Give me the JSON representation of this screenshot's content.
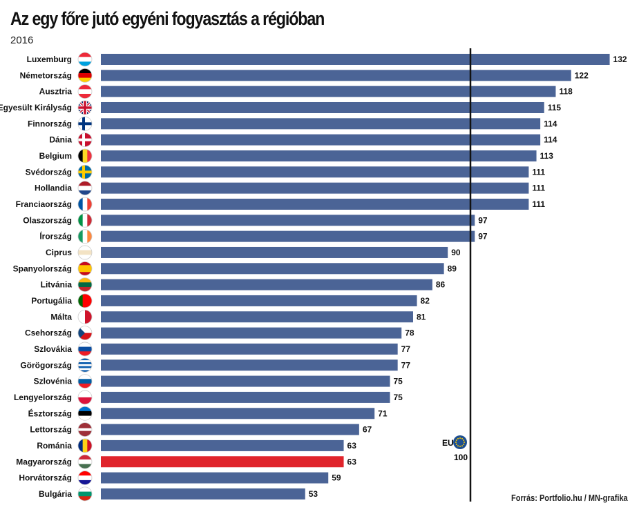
{
  "title": "Az egy főre jutó egyéni fogyasztás a régióban",
  "subtitle": "2016",
  "source": "Forrás: Portfolio.hu / MN-grafika",
  "eu": {
    "label": "EU",
    "value": 100,
    "value_label": "100"
  },
  "colors": {
    "bar": "#4b6496",
    "highlight": "#e0242b",
    "eu_line": "#111111"
  },
  "chart_data": {
    "type": "bar",
    "orientation": "horizontal",
    "title": "Az egy főre jutó egyéni fogyasztás a régióban",
    "subtitle": "2016",
    "xlabel": "",
    "ylabel": "",
    "reference_line": {
      "label": "EU",
      "value": 100
    },
    "highlight": "Magyarország",
    "categories": [
      "Luxemburg",
      "Németország",
      "Ausztria",
      "Egyesült Királyság",
      "Finnország",
      "Dánia",
      "Belgium",
      "Svédország",
      "Hollandia",
      "Franciaország",
      "Olaszország",
      "Írország",
      "Ciprus",
      "Spanyolország",
      "Litvánia",
      "Portugália",
      "Málta",
      "Csehország",
      "Szlovákia",
      "Görögország",
      "Szlovénia",
      "Lengyelország",
      "Észtország",
      "Lettország",
      "Románia",
      "Magyarország",
      "Horvátország",
      "Bulgária"
    ],
    "values": [
      132,
      122,
      118,
      115,
      114,
      114,
      113,
      111,
      111,
      111,
      97,
      97,
      90,
      89,
      86,
      82,
      81,
      78,
      77,
      77,
      75,
      75,
      71,
      67,
      63,
      63,
      59,
      53
    ],
    "flags": [
      {
        "t": "h",
        "c": [
          "#ed2939",
          "#ffffff",
          "#00a1de"
        ]
      },
      {
        "t": "h",
        "c": [
          "#000000",
          "#dd0000",
          "#ffce00"
        ]
      },
      {
        "t": "h",
        "c": [
          "#ed2939",
          "#ffffff",
          "#ed2939"
        ]
      },
      {
        "t": "uk",
        "c": [
          "#012169",
          "#ffffff",
          "#c8102e"
        ]
      },
      {
        "t": "nordic",
        "c": [
          "#ffffff",
          "#003580"
        ]
      },
      {
        "t": "nordic",
        "c": [
          "#c8102e",
          "#ffffff"
        ]
      },
      {
        "t": "v",
        "c": [
          "#000000",
          "#fdda24",
          "#ef3340"
        ]
      },
      {
        "t": "nordic",
        "c": [
          "#006aa7",
          "#fecc00"
        ]
      },
      {
        "t": "h",
        "c": [
          "#ae1c28",
          "#ffffff",
          "#21468b"
        ]
      },
      {
        "t": "v",
        "c": [
          "#0055a4",
          "#ffffff",
          "#ef4135"
        ]
      },
      {
        "t": "v",
        "c": [
          "#009246",
          "#ffffff",
          "#ce2b37"
        ]
      },
      {
        "t": "v",
        "c": [
          "#169b62",
          "#ffffff",
          "#ff883e"
        ]
      },
      {
        "t": "h",
        "c": [
          "#ffffff",
          "#f3e3c4",
          "#ffffff"
        ]
      },
      {
        "t": "h",
        "c": [
          "#c60b1e",
          "#ffc400",
          "#ffc400",
          "#c60b1e"
        ]
      },
      {
        "t": "h",
        "c": [
          "#fdb913",
          "#006a44",
          "#c1272d"
        ]
      },
      {
        "t": "v",
        "c": [
          "#006600",
          "#ff0000",
          "#ff0000"
        ]
      },
      {
        "t": "v",
        "c": [
          "#ffffff",
          "#cf142b"
        ]
      },
      {
        "t": "cz",
        "c": [
          "#ffffff",
          "#d7141a",
          "#11457e"
        ]
      },
      {
        "t": "h",
        "c": [
          "#ffffff",
          "#0b4ea2",
          "#ee1c25"
        ]
      },
      {
        "t": "h",
        "c": [
          "#0d5eaf",
          "#ffffff",
          "#0d5eaf",
          "#ffffff",
          "#0d5eaf",
          "#ffffff",
          "#0d5eaf"
        ]
      },
      {
        "t": "h",
        "c": [
          "#ffffff",
          "#005da4",
          "#ed1c24"
        ]
      },
      {
        "t": "h",
        "c": [
          "#ffffff",
          "#dc143c"
        ]
      },
      {
        "t": "h",
        "c": [
          "#0072ce",
          "#000000",
          "#ffffff"
        ]
      },
      {
        "t": "h",
        "c": [
          "#9e3039",
          "#9e3039",
          "#ffffff",
          "#9e3039",
          "#9e3039"
        ]
      },
      {
        "t": "v",
        "c": [
          "#002b7f",
          "#fcd116",
          "#ce1126"
        ]
      },
      {
        "t": "h",
        "c": [
          "#ce2939",
          "#ffffff",
          "#477050"
        ]
      },
      {
        "t": "h",
        "c": [
          "#ff0000",
          "#ffffff",
          "#171796"
        ]
      },
      {
        "t": "h",
        "c": [
          "#ffffff",
          "#00966e",
          "#d62612"
        ]
      }
    ]
  }
}
